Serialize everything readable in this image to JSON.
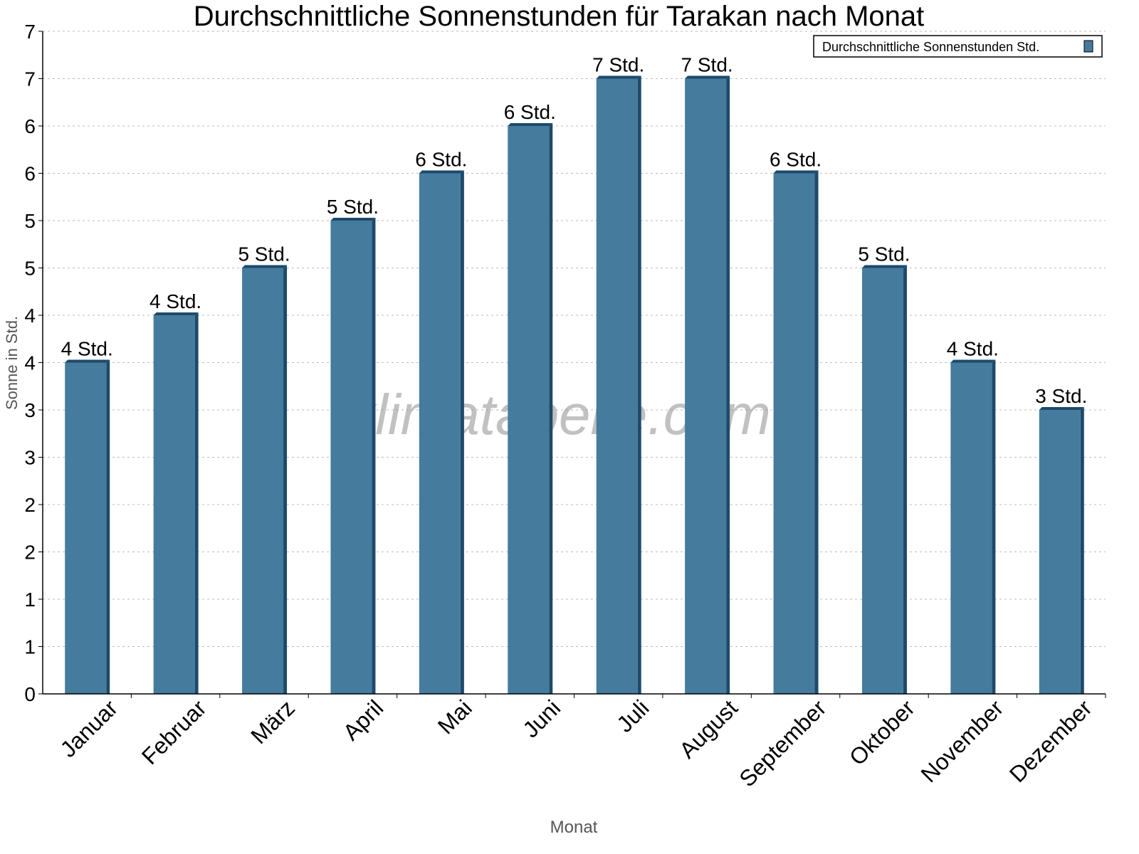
{
  "chart_data": {
    "type": "bar",
    "title": "Durchschnittliche Sonnenstunden für Tarakan nach Monat",
    "xlabel": "Monat",
    "ylabel": "Sonne in Std.",
    "categories": [
      "Januar",
      "Februar",
      "März",
      "April",
      "Mai",
      "Juni",
      "Juli",
      "August",
      "September",
      "Oktober",
      "November",
      "Dezember"
    ],
    "series": [
      {
        "name": "Durchschnittliche Sonnenstunden Std.",
        "values": [
          3.5,
          4.0,
          4.5,
          5.0,
          5.5,
          6.0,
          6.5,
          6.5,
          5.5,
          4.5,
          3.5,
          3.0
        ],
        "data_labels": [
          "4 Std.",
          "4 Std.",
          "5 Std.",
          "5 Std.",
          "6 Std.",
          "6 Std.",
          "7 Std.",
          "7 Std.",
          "6 Std.",
          "5 Std.",
          "4 Std.",
          "3 Std."
        ]
      }
    ],
    "ylim": [
      0,
      7
    ],
    "y_ticks": [
      0,
      0.5,
      1,
      1.5,
      2,
      2.5,
      3,
      3.5,
      4,
      4.5,
      5,
      5.5,
      6,
      6.5,
      7
    ],
    "y_tick_labels": [
      "0",
      "1",
      "1",
      "2",
      "2",
      "3",
      "3",
      "4",
      "4",
      "5",
      "5",
      "6",
      "6",
      "7",
      "7"
    ],
    "grid": true,
    "legend_position": "top-right",
    "colors": {
      "bar": "#457b9d",
      "bar_side": "#1d4a6b"
    },
    "watermark": "klimatabelle.com"
  }
}
